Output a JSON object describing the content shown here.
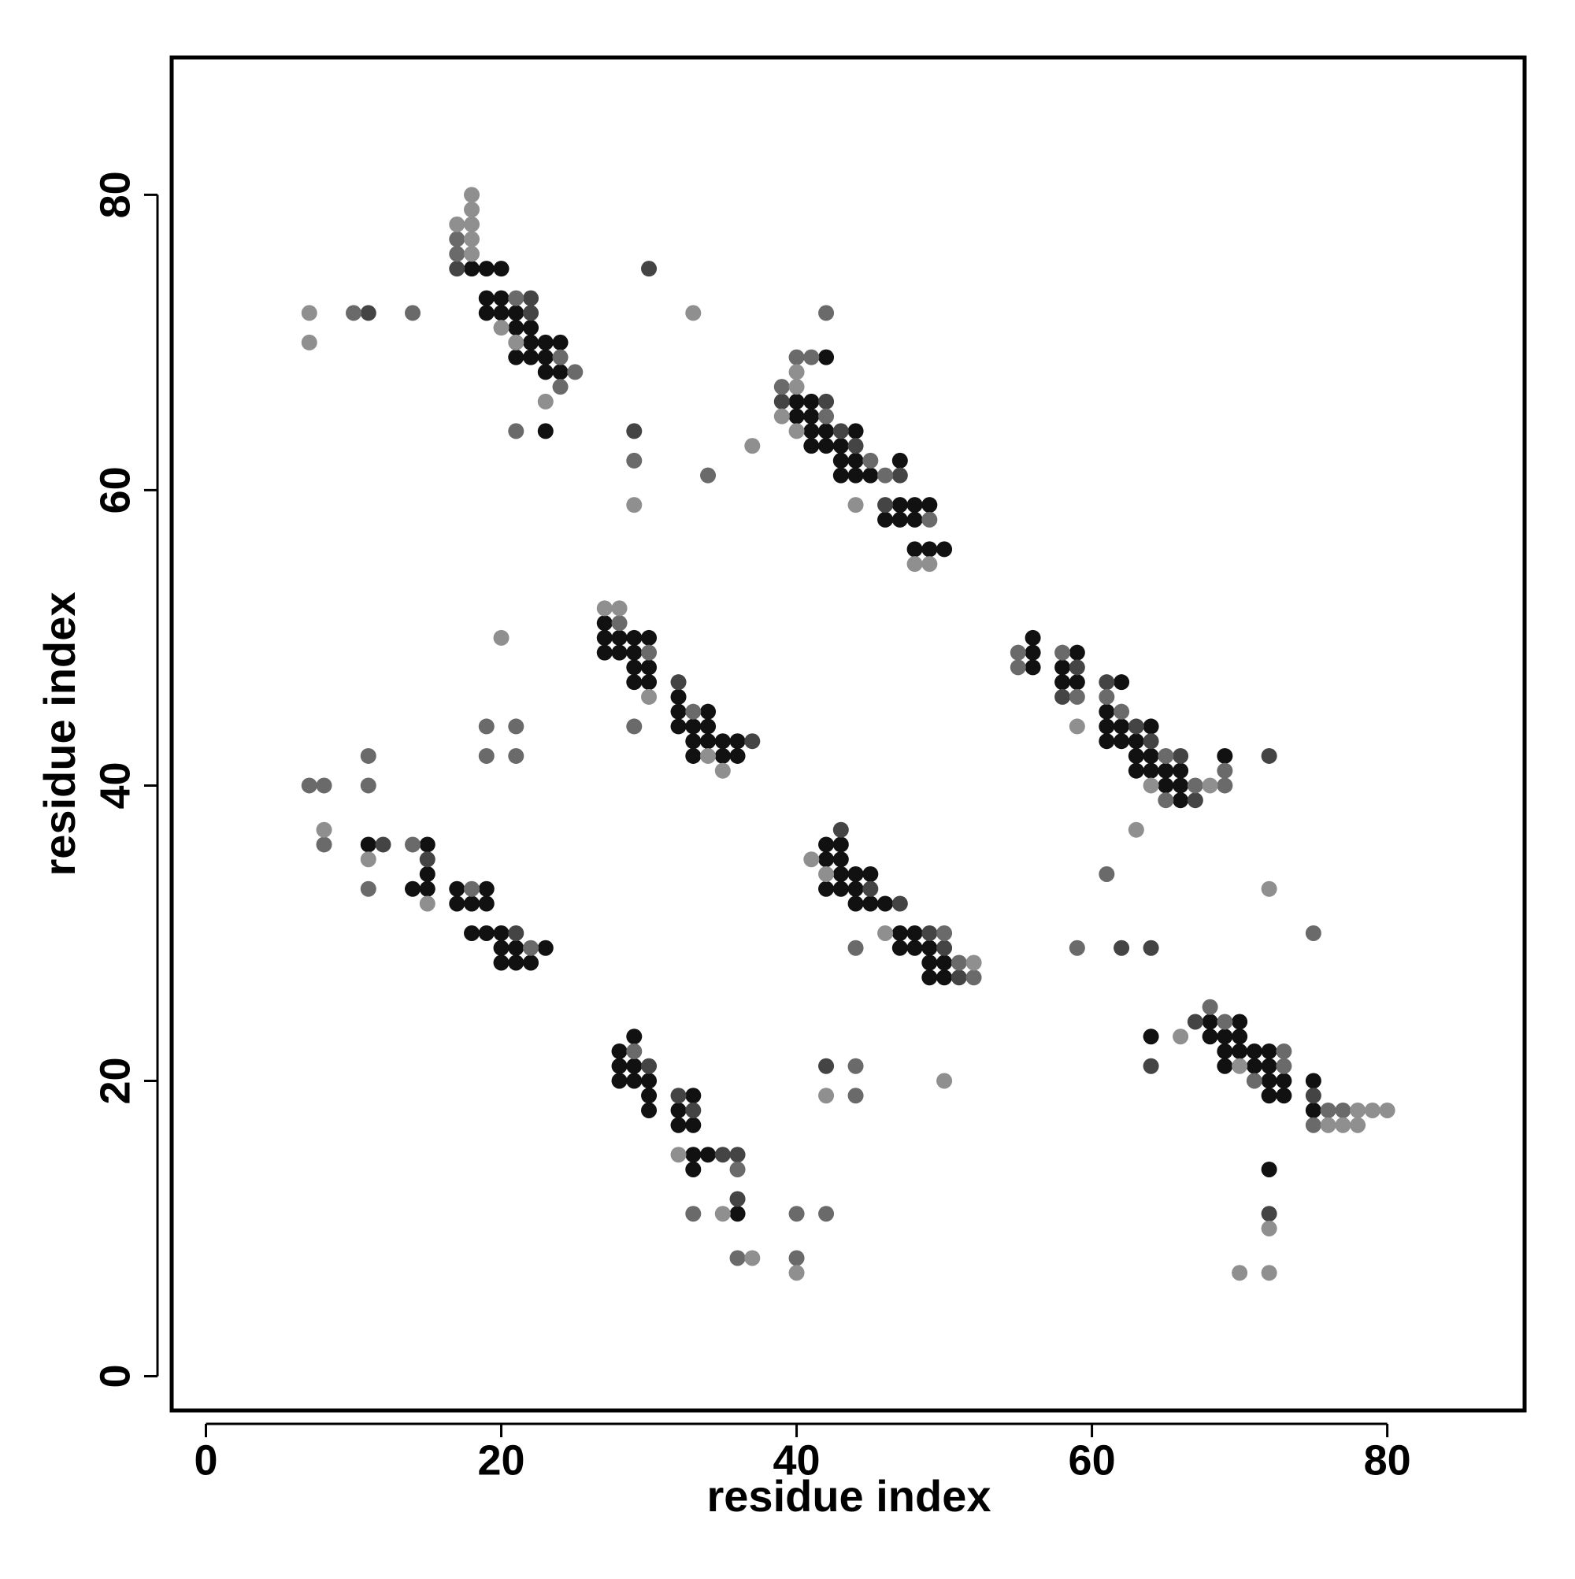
{
  "chart_data": {
    "type": "scatter",
    "xlabel": "residue index",
    "ylabel": "residue index",
    "xlim": [
      -2.32,
      89.3
    ],
    "ylim": [
      -2.32,
      89.3
    ],
    "xticks": [
      0,
      20,
      40,
      60,
      80
    ],
    "yticks": [
      0,
      20,
      40,
      60,
      80
    ],
    "series": [
      {
        "color": "#111111",
        "x": [
          18,
          19,
          20,
          19,
          20,
          19,
          20,
          21,
          21,
          22,
          22,
          23,
          24,
          21,
          22,
          23,
          23,
          24,
          23,
          42,
          40,
          41,
          40,
          41,
          41,
          42,
          44,
          41,
          42,
          43,
          43,
          44,
          47,
          43,
          44,
          45,
          47,
          48,
          49,
          46,
          47,
          48,
          48,
          49,
          50,
          27,
          27,
          28,
          29,
          30,
          27,
          28,
          29,
          29,
          30,
          29,
          30,
          32,
          32,
          34,
          32,
          33,
          34,
          33,
          34,
          35,
          36,
          33,
          35,
          36,
          56,
          56,
          59,
          56,
          58,
          58,
          59,
          62,
          61,
          61,
          62,
          64,
          61,
          62,
          63,
          63,
          64,
          69,
          63,
          64,
          65,
          66,
          65,
          66,
          66,
          42,
          43,
          42,
          43,
          43,
          44,
          45,
          42,
          43,
          44,
          44,
          45,
          46,
          47,
          48,
          47,
          48,
          49,
          49,
          50,
          49,
          50,
          11,
          15,
          15,
          14,
          15,
          17,
          19,
          17,
          18,
          19,
          18,
          19,
          20,
          20,
          21,
          23,
          20,
          21,
          22,
          29,
          28,
          28,
          29,
          28,
          29,
          30,
          30,
          33,
          30,
          32,
          32,
          33,
          33,
          34,
          33,
          36,
          68,
          70,
          64,
          68,
          69,
          70,
          69,
          70,
          71,
          72,
          69,
          71,
          72,
          72,
          73,
          75,
          72,
          73,
          75,
          72
        ],
        "y": [
          75,
          75,
          75,
          73,
          73,
          72,
          72,
          72,
          71,
          71,
          70,
          70,
          70,
          69,
          69,
          69,
          68,
          68,
          64,
          69,
          66,
          66,
          65,
          65,
          64,
          64,
          64,
          63,
          63,
          63,
          62,
          62,
          62,
          61,
          61,
          61,
          59,
          59,
          59,
          58,
          58,
          58,
          56,
          56,
          56,
          51,
          50,
          50,
          50,
          50,
          49,
          49,
          49,
          48,
          48,
          47,
          47,
          46,
          45,
          45,
          44,
          44,
          44,
          43,
          43,
          43,
          43,
          42,
          42,
          42,
          50,
          49,
          49,
          48,
          48,
          47,
          47,
          47,
          45,
          44,
          44,
          44,
          43,
          43,
          43,
          42,
          42,
          42,
          41,
          41,
          41,
          41,
          40,
          40,
          39,
          36,
          36,
          35,
          35,
          34,
          34,
          34,
          33,
          33,
          33,
          32,
          32,
          32,
          30,
          30,
          29,
          29,
          29,
          28,
          28,
          27,
          27,
          36,
          36,
          34,
          33,
          33,
          33,
          33,
          32,
          32,
          32,
          30,
          30,
          30,
          29,
          29,
          29,
          28,
          28,
          28,
          23,
          22,
          21,
          21,
          20,
          20,
          20,
          19,
          19,
          18,
          18,
          17,
          17,
          15,
          15,
          14,
          11,
          24,
          24,
          23,
          23,
          23,
          23,
          22,
          22,
          22,
          22,
          21,
          21,
          21,
          20,
          20,
          20,
          19,
          19,
          18,
          14
        ]
      },
      {
        "color": "#444444",
        "x": [
          17,
          22,
          22,
          11,
          30,
          29,
          39,
          42,
          43,
          44,
          47,
          46,
          32,
          37,
          59,
          61,
          58,
          63,
          64,
          66,
          72,
          67,
          62,
          64,
          43,
          45,
          47,
          49,
          50,
          51,
          12,
          15,
          21,
          30,
          32,
          33,
          35,
          36,
          36,
          42,
          67,
          64,
          75,
          72
        ],
        "y": [
          75,
          73,
          72,
          72,
          75,
          64,
          66,
          66,
          64,
          63,
          61,
          59,
          47,
          43,
          48,
          47,
          46,
          44,
          43,
          42,
          42,
          39,
          29,
          29,
          37,
          33,
          32,
          30,
          29,
          27,
          36,
          35,
          30,
          21,
          19,
          18,
          15,
          15,
          12,
          21,
          24,
          21,
          19,
          11
        ]
      },
      {
        "color": "#6a6a6a",
        "x": [
          17,
          17,
          21,
          24,
          25,
          24,
          21,
          10,
          14,
          29,
          34,
          42,
          40,
          41,
          39,
          42,
          45,
          46,
          49,
          28,
          30,
          33,
          29,
          19,
          21,
          19,
          21,
          55,
          58,
          55,
          59,
          61,
          62,
          65,
          69,
          67,
          69,
          65,
          61,
          75,
          59,
          50,
          44,
          51,
          52,
          7,
          8,
          8,
          11,
          11,
          14,
          11,
          18,
          22,
          29,
          36,
          33,
          40,
          42,
          36,
          40,
          44,
          44,
          68,
          69,
          73,
          73,
          71,
          76,
          77,
          75
        ],
        "y": [
          77,
          76,
          73,
          69,
          68,
          67,
          64,
          72,
          72,
          62,
          61,
          72,
          69,
          69,
          67,
          65,
          62,
          61,
          58,
          51,
          49,
          45,
          44,
          44,
          44,
          42,
          42,
          49,
          49,
          48,
          46,
          46,
          45,
          42,
          41,
          40,
          40,
          39,
          34,
          30,
          29,
          30,
          29,
          28,
          27,
          40,
          40,
          36,
          42,
          40,
          36,
          33,
          33,
          29,
          22,
          14,
          11,
          11,
          11,
          8,
          8,
          21,
          19,
          25,
          24,
          22,
          21,
          20,
          18,
          18,
          17
        ]
      },
      {
        "color": "#8f8f8f",
        "x": [
          18,
          18,
          17,
          18,
          18,
          18,
          20,
          21,
          23,
          7,
          7,
          33,
          29,
          37,
          40,
          40,
          39,
          40,
          44,
          48,
          49,
          27,
          28,
          30,
          34,
          35,
          20,
          59,
          64,
          68,
          63,
          72,
          41,
          42,
          46,
          52,
          8,
          11,
          15,
          32,
          35,
          37,
          40,
          42,
          50,
          66,
          70,
          78,
          79,
          80,
          76,
          77,
          78,
          72,
          70,
          72
        ],
        "y": [
          80,
          79,
          78,
          78,
          77,
          76,
          71,
          70,
          66,
          72,
          70,
          72,
          59,
          63,
          68,
          67,
          65,
          64,
          59,
          55,
          55,
          52,
          52,
          46,
          42,
          41,
          50,
          44,
          40,
          40,
          37,
          33,
          35,
          34,
          30,
          28,
          37,
          35,
          32,
          15,
          11,
          8,
          7,
          19,
          20,
          23,
          21,
          18,
          18,
          18,
          17,
          17,
          17,
          10,
          7,
          7
        ]
      }
    ]
  }
}
